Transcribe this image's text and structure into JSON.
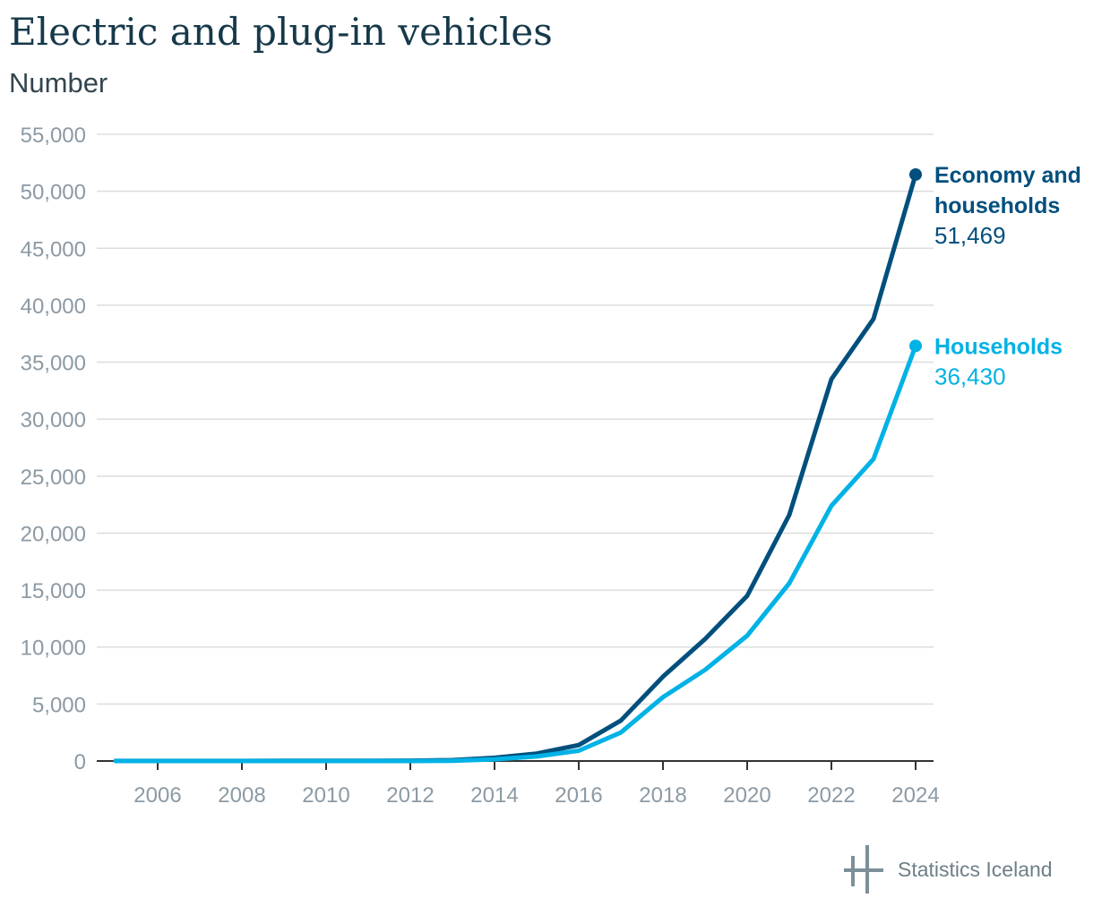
{
  "chart_data": {
    "type": "line",
    "title": "Electric and plug-in vehicles",
    "subtitle": "Number",
    "xlabel": "",
    "ylabel": "",
    "x": [
      2005,
      2006,
      2007,
      2008,
      2009,
      2010,
      2011,
      2012,
      2013,
      2014,
      2015,
      2016,
      2017,
      2018,
      2019,
      2020,
      2021,
      2022,
      2023,
      2024
    ],
    "xlim": [
      2005,
      2024
    ],
    "x_ticks": [
      "2006",
      "2008",
      "2010",
      "2012",
      "2014",
      "2016",
      "2018",
      "2020",
      "2022",
      "2024"
    ],
    "ylim": [
      0,
      55000
    ],
    "y_ticks": [
      "0",
      "5,000",
      "10,000",
      "15,000",
      "20,000",
      "25,000",
      "30,000",
      "35,000",
      "40,000",
      "45,000",
      "50,000",
      "55,000"
    ],
    "grid": "horizontal",
    "legend": "direct labels at line ends",
    "series": [
      {
        "name": "Economy and households",
        "name_lines": [
          "Economy and",
          "households"
        ],
        "end_label": "51,469",
        "color": "#004f7d",
        "values": [
          5,
          5,
          10,
          10,
          15,
          20,
          25,
          30,
          80,
          280,
          650,
          1400,
          3550,
          7400,
          10700,
          14500,
          21600,
          33500,
          38800,
          51469
        ]
      },
      {
        "name": "Households",
        "name_lines": [
          "Households"
        ],
        "end_label": "36,430",
        "color": "#00b2e6",
        "values": [
          0,
          0,
          0,
          0,
          0,
          0,
          0,
          0,
          20,
          150,
          400,
          900,
          2500,
          5600,
          8000,
          11000,
          15600,
          22400,
          26500,
          36430
        ]
      }
    ]
  },
  "branding": {
    "name": "Statistics Iceland",
    "icon": "statistics-iceland-logo-icon"
  },
  "colors": {
    "title": "#16394a",
    "axis_text": "#8c9aa4",
    "gridline": "#dddddd",
    "axis_line": "#333333"
  }
}
